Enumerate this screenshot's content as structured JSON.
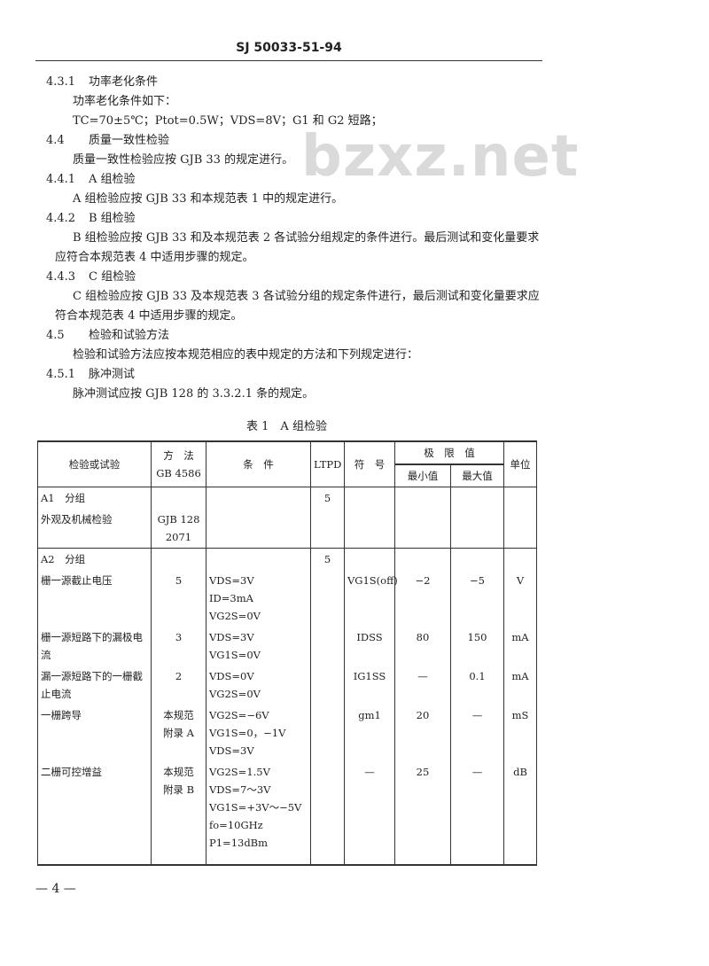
{
  "header": {
    "code": "SJ 50033-51-94"
  },
  "watermark": "bzxz.net",
  "sections": [
    {
      "number": "4.3.1",
      "title": "功率老化条件",
      "paragraphs": [
        "功率老化条件如下：",
        "TC=70±5℃；Ptot=0.5W；VDS=8V；G1 和 G2 短路；"
      ]
    },
    {
      "number": "4.4",
      "title": "质量一致性检验",
      "paragraphs": [
        "质量一致性检验应按 GJB 33 的规定进行。"
      ]
    },
    {
      "number": "4.4.1",
      "title": "A 组检验",
      "paragraphs": [
        "A 组检验应按 GJB 33 和本规范表 1 中的规定进行。"
      ]
    },
    {
      "number": "4.4.2",
      "title": "B 组检验",
      "paragraphs": [
        "B 组检验应按 GJB 33 和及本规范表 2 各试验分组规定的条件进行。最后测试和变化量要求应符合本规范表 4 中适用步骤的规定。"
      ]
    },
    {
      "number": "4.4.3",
      "title": "C 组检验",
      "paragraphs": [
        "C 组检验应按 GJB 33 及本规范表 3 各试验分组的规定条件进行，最后测试和变化量要求应符合本规范表 4 中适用步骤的规定。"
      ]
    },
    {
      "number": "4.5",
      "title": "检验和试验方法",
      "paragraphs": [
        "检验和试验方法应按本规范相应的表中规定的方法和下列规定进行："
      ]
    },
    {
      "number": "4.5.1",
      "title": "脉冲测试",
      "paragraphs": [
        "脉冲测试应按 GJB 128 的 3.3.2.1 条的规定。"
      ]
    }
  ],
  "table": {
    "caption": "表 1　A 组检验",
    "header": {
      "test": "检验或试验",
      "method": [
        "方　法",
        "GB 4586"
      ],
      "conditions": "条　件",
      "ltpd": "LTPD",
      "symbol": "符　号",
      "limits": "极　限　值",
      "min": "最小值",
      "max": "最大值",
      "unit": "单位"
    },
    "groups": [
      {
        "name": "A1　分组",
        "ltpd": "5",
        "rows": [
          {
            "test": "外观及机械检验",
            "method": [
              "GJB 128",
              "2071"
            ]
          }
        ]
      },
      {
        "name": "A2　分组",
        "ltpd": "5",
        "rows": [
          {
            "test": "栅一源截止电压",
            "method": [
              "5"
            ],
            "conditions": [
              "VDS=3V",
              "ID=3mA",
              "VG2S=0V"
            ],
            "symbol": "VG1S(off)",
            "min": "−2",
            "max": "−5",
            "unit": "V"
          },
          {
            "test": "栅一源短路下的漏极电流",
            "method": [
              "3"
            ],
            "conditions": [
              "VDS=3V",
              "VG1S=0V"
            ],
            "symbol": "IDSS",
            "min": "80",
            "max": "150",
            "unit": "mA"
          },
          {
            "test": "漏一源短路下的一栅截止电流",
            "method": [
              "2"
            ],
            "conditions": [
              "VDS=0V",
              "VG2S=0V"
            ],
            "symbol": "IG1SS",
            "min": "—",
            "max": "0.1",
            "unit": "mA"
          },
          {
            "test": "一栅跨导",
            "method": [
              "本规范",
              "附录 A"
            ],
            "conditions": [
              "VG2S=−6V",
              "VG1S=0，−1V",
              "VDS=3V"
            ],
            "symbol": "gm1",
            "min": "20",
            "max": "—",
            "unit": "mS"
          },
          {
            "test": "二栅可控增益",
            "method": [
              "本规范",
              "附录 B"
            ],
            "conditions": [
              "VG2S=1.5V",
              "VDS=7～3V",
              "VG1S=+3V～−5V",
              "fo=10GHz",
              "P1=13dBm"
            ],
            "symbol": "—",
            "min": "25",
            "max": "—",
            "unit": "dB"
          }
        ]
      }
    ]
  },
  "footer": {
    "page": "— 4 —"
  }
}
